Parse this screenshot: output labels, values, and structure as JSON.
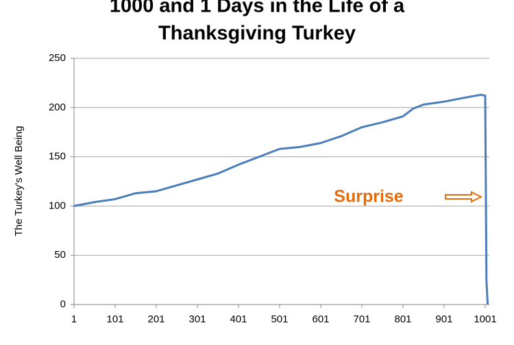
{
  "chart_data": {
    "type": "line",
    "title": [
      "1000 and 1 Days in the Life of a",
      "Thanksgiving Turkey"
    ],
    "y_label": "The Turkey's Well Being",
    "annotation": "Surprise",
    "x": [
      1,
      51,
      101,
      151,
      201,
      251,
      301,
      351,
      401,
      451,
      501,
      551,
      601,
      651,
      701,
      751,
      801,
      826,
      851,
      901,
      951,
      991,
      1001,
      1004,
      1007
    ],
    "series": [
      {
        "name": "Well Being",
        "color": "#4a7ebb",
        "values": [
          100,
          104,
          107,
          113,
          115,
          121,
          127,
          133,
          142,
          150,
          158,
          160,
          164,
          171,
          180,
          185,
          191,
          199,
          203,
          206,
          210,
          213,
          212,
          25,
          0
        ]
      }
    ],
    "xlim": [
      1,
      1011
    ],
    "xticks": [
      1,
      101,
      201,
      301,
      401,
      501,
      601,
      701,
      801,
      901,
      1001
    ],
    "ylim": [
      0,
      250
    ],
    "yticks": [
      0,
      50,
      100,
      150,
      200,
      250
    ],
    "grid": true
  }
}
